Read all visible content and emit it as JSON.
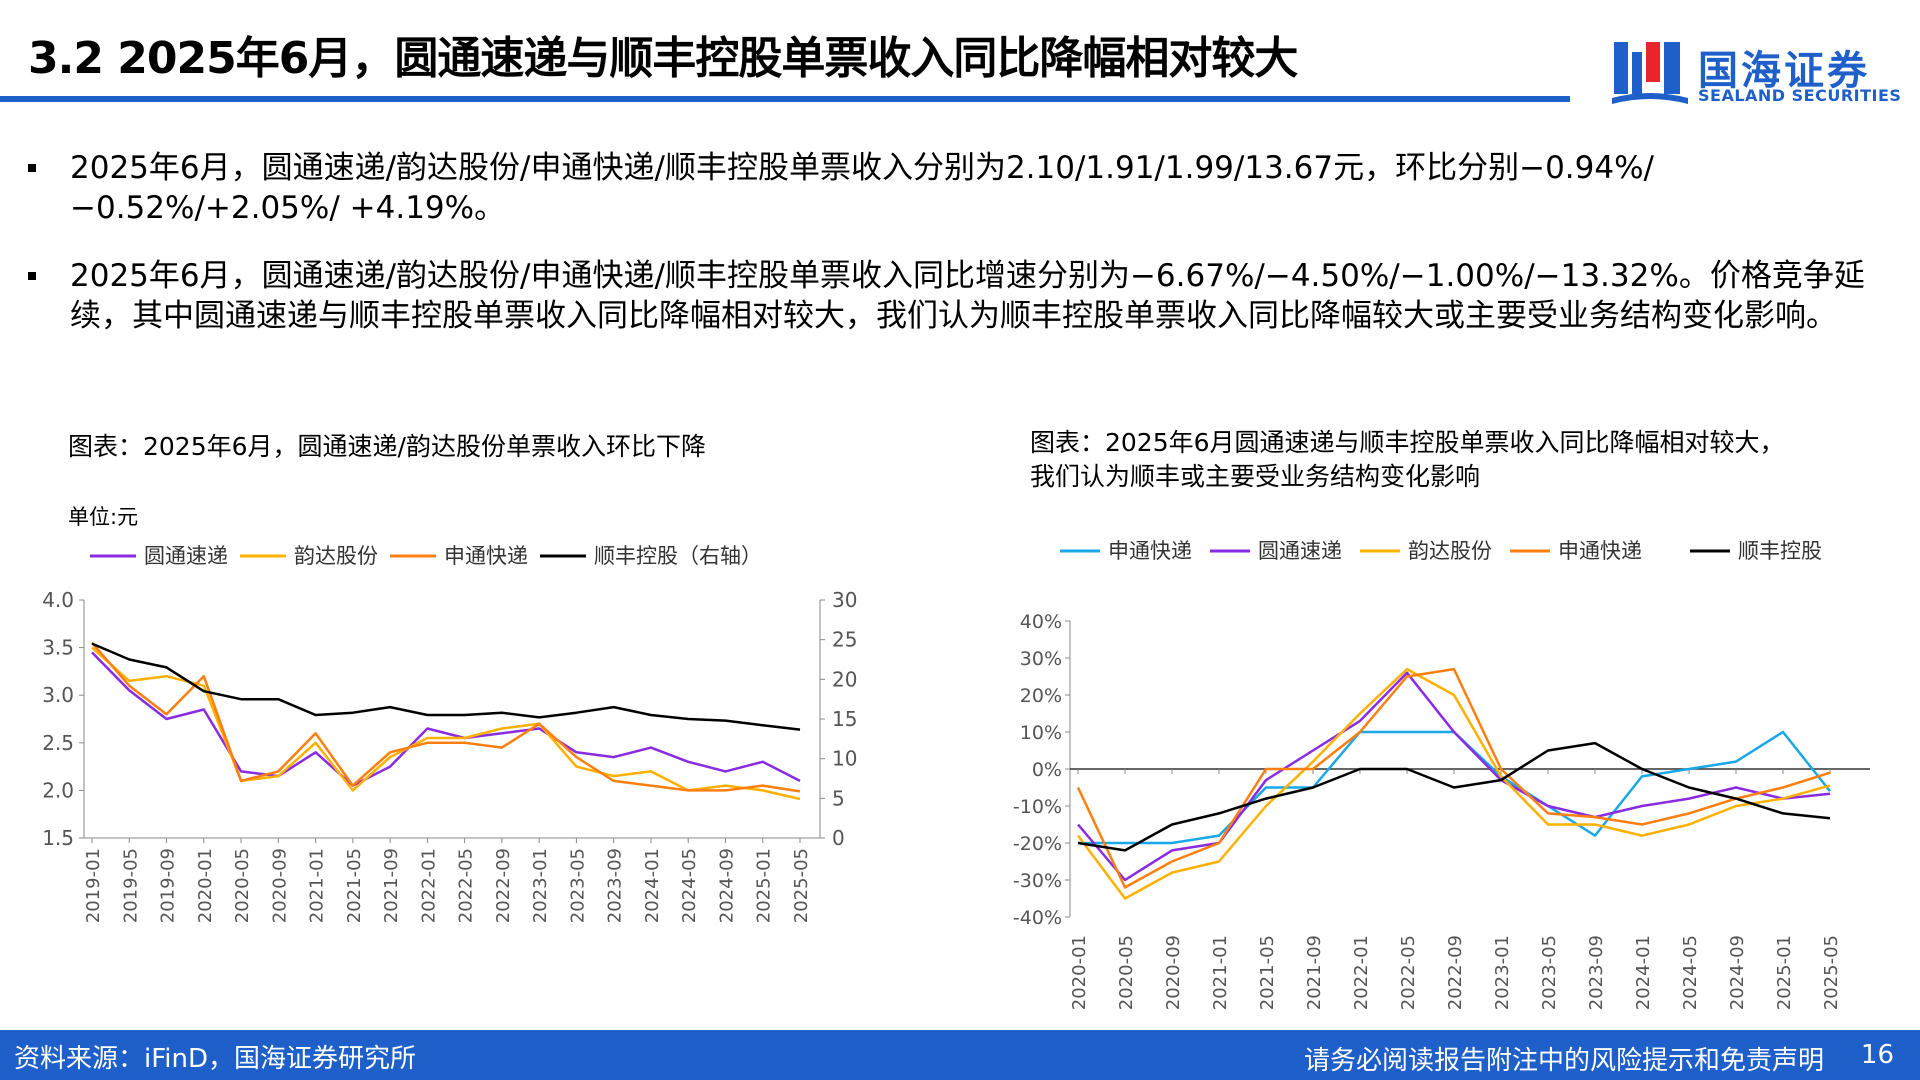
{
  "header": {
    "title": "3.2 2025年6月，圆通速递与顺丰控股单票收入同比降幅相对较大",
    "logo_cn": "国海证券",
    "logo_en": "SEALAND SECURITIES"
  },
  "bullets": [
    "2025年6月，圆通速递/韵达股份/申通快递/顺丰控股单票收入分别为2.10/1.91/1.99/13.67元，环比分别−0.94%/−0.52%/+2.05%/ +4.19%。",
    "2025年6月，圆通速递/韵达股份/申通快递/顺丰控股单票收入同比增速分别为−6.67%/−4.50%/−1.00%/−13.32%。价格竞争延续，其中圆通速递与顺丰控股单票收入同比降幅相对较大，我们认为顺丰控股单票收入同比降幅较大或主要受业务结构变化影响。"
  ],
  "figure_left": {
    "title": "图表：2025年6月，圆通速递/韵达股份单票收入环比下降",
    "unit": "单位:元"
  },
  "figure_right": {
    "title_line1": "图表：2025年6月圆通速递与顺丰控股单票收入同比降幅相对较大，",
    "title_line2": "我们认为顺丰或主要受业务结构变化影响"
  },
  "footer": {
    "source": "资料来源：iFinD，国海证券研究所",
    "disclaimer": "请务必阅读报告附注中的风险提示和免责声明",
    "page": "16"
  },
  "colors": {
    "brand": "#1e5fc9",
    "yto": "#8a2be2",
    "yunda": "#ffb000",
    "sto": "#ff7f0e",
    "sf": "#000000",
    "sto_cyan": "#1aa7e8"
  },
  "chart_data": [
    {
      "type": "line",
      "legend": [
        "圆通速递",
        "韵达股份",
        "申通快递",
        "顺丰控股（右轴）"
      ],
      "x": [
        "2019-01",
        "2019-05",
        "2019-09",
        "2020-01",
        "2020-05",
        "2020-09",
        "2021-01",
        "2021-05",
        "2021-09",
        "2022-01",
        "2022-05",
        "2022-09",
        "2023-01",
        "2023-05",
        "2023-09",
        "2024-01",
        "2024-05",
        "2024-09",
        "2025-01",
        "2025-05"
      ],
      "ylim": [
        1.5,
        4.0
      ],
      "yticks": [
        "1.5",
        "2.0",
        "2.5",
        "3.0",
        "3.5",
        "4.0"
      ],
      "y2lim": [
        0,
        30
      ],
      "y2ticks": [
        "0",
        "5",
        "10",
        "15",
        "20",
        "25",
        "30"
      ],
      "series": [
        {
          "name": "圆通速递",
          "color": "#8a2be2",
          "axis": "left",
          "values": [
            3.45,
            3.05,
            2.75,
            2.85,
            2.2,
            2.15,
            2.4,
            2.05,
            2.25,
            2.65,
            2.55,
            2.6,
            2.65,
            2.4,
            2.35,
            2.45,
            2.3,
            2.2,
            2.3,
            2.1
          ]
        },
        {
          "name": "韵达股份",
          "color": "#ffb000",
          "axis": "left",
          "values": [
            3.5,
            3.15,
            3.2,
            3.1,
            2.1,
            2.15,
            2.5,
            2.0,
            2.35,
            2.55,
            2.55,
            2.65,
            2.7,
            2.25,
            2.15,
            2.2,
            2.0,
            2.05,
            2.0,
            1.91
          ]
        },
        {
          "name": "申通快递",
          "color": "#ff7f0e",
          "axis": "left",
          "values": [
            3.55,
            3.1,
            2.8,
            3.2,
            2.1,
            2.2,
            2.6,
            2.05,
            2.4,
            2.5,
            2.5,
            2.45,
            2.7,
            2.35,
            2.1,
            2.05,
            2.0,
            2.0,
            2.05,
            1.99
          ]
        },
        {
          "name": "顺丰控股（右轴）",
          "color": "#000000",
          "axis": "right",
          "values": [
            24.5,
            22.5,
            21.5,
            18.5,
            17.5,
            17.5,
            15.5,
            15.8,
            16.5,
            15.5,
            15.5,
            15.8,
            15.2,
            15.8,
            16.5,
            15.5,
            15.0,
            14.8,
            14.2,
            13.67
          ]
        }
      ]
    },
    {
      "type": "line",
      "legend": [
        "申通快递",
        "圆通速递",
        "韵达股份",
        "申通快递",
        "顺丰控股"
      ],
      "x": [
        "2020-01",
        "2020-05",
        "2020-09",
        "2021-01",
        "2021-05",
        "2021-09",
        "2022-01",
        "2022-05",
        "2022-09",
        "2023-01",
        "2023-05",
        "2023-09",
        "2024-01",
        "2024-05",
        "2024-09",
        "2025-01",
        "2025-05"
      ],
      "ylim": [
        -40,
        40
      ],
      "yticks": [
        "-40%",
        "-30%",
        "-20%",
        "-10%",
        "0%",
        "10%",
        "20%",
        "30%",
        "40%"
      ],
      "series": [
        {
          "name": "申通快递",
          "color": "#1aa7e8",
          "values": [
            -20,
            -20,
            -20,
            -18,
            -5,
            -5,
            10,
            10,
            10,
            -2,
            -10,
            -18,
            -2,
            0,
            2,
            10,
            -6
          ]
        },
        {
          "name": "圆通速递",
          "color": "#8a2be2",
          "values": [
            -15,
            -30,
            -22,
            -20,
            -3,
            5,
            13,
            26,
            10,
            -3,
            -10,
            -13,
            -10,
            -8,
            -5,
            -8,
            -6.67
          ]
        },
        {
          "name": "韵达股份",
          "color": "#ffb000",
          "values": [
            -18,
            -35,
            -28,
            -25,
            -10,
            2,
            15,
            27,
            20,
            -2,
            -15,
            -15,
            -18,
            -15,
            -10,
            -8,
            -4.5
          ]
        },
        {
          "name": "申通快递",
          "color": "#ff7f0e",
          "values": [
            -5,
            -32,
            -25,
            -20,
            0,
            0,
            10,
            25,
            27,
            0,
            -12,
            -13,
            -15,
            -12,
            -8,
            -5,
            -1
          ]
        },
        {
          "name": "顺丰控股",
          "color": "#000000",
          "values": [
            -20,
            -22,
            -15,
            -12,
            -8,
            -5,
            0,
            0,
            -5,
            -3,
            5,
            7,
            0,
            -5,
            -8,
            -12,
            -13.32
          ]
        }
      ]
    }
  ]
}
